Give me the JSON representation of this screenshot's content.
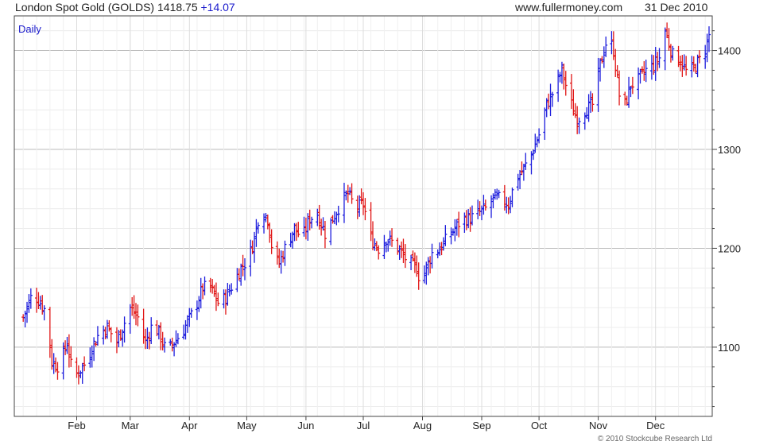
{
  "header": {
    "instrument": "London Spot Gold (GOLDS)",
    "price": "1418.75",
    "change": "+14.07",
    "site": "www.fullermoney.com",
    "date": "31 Dec 2010"
  },
  "frequency_label": "Daily",
  "copyright": "© 2010 Stockcube Research Ltd",
  "colors": {
    "up": "#1c1cdc",
    "down": "#e01515",
    "grid": "#cccccc",
    "frame": "#444444"
  },
  "chart_data": {
    "type": "candlestick",
    "title": "London Spot Gold (GOLDS)",
    "xlabel": "",
    "ylabel": "",
    "ylim": [
      1030,
      1435
    ],
    "y_ticks": [
      1100,
      1200,
      1300,
      1400
    ],
    "x_ticks": [
      "Feb",
      "Mar",
      "Apr",
      "May",
      "Jun",
      "Jul",
      "Aug",
      "Sep",
      "Oct",
      "Nov",
      "Dec"
    ],
    "x_tick_days": [
      31,
      59,
      90,
      120,
      151,
      181,
      212,
      243,
      273,
      304,
      334
    ],
    "x_range": [
      0,
      362
    ],
    "grid": true,
    "anchors": [
      [
        1,
        1120
      ],
      [
        5,
        1140
      ],
      [
        8,
        1155
      ],
      [
        12,
        1145
      ],
      [
        15,
        1135
      ],
      [
        18,
        1085
      ],
      [
        22,
        1080
      ],
      [
        26,
        1105
      ],
      [
        29,
        1070
      ],
      [
        32,
        1075
      ],
      [
        36,
        1085
      ],
      [
        39,
        1100
      ],
      [
        43,
        1115
      ],
      [
        47,
        1120
      ],
      [
        52,
        1105
      ],
      [
        56,
        1125
      ],
      [
        59,
        1140
      ],
      [
        63,
        1130
      ],
      [
        67,
        1105
      ],
      [
        71,
        1125
      ],
      [
        75,
        1110
      ],
      [
        78,
        1095
      ],
      [
        82,
        1105
      ],
      [
        86,
        1115
      ],
      [
        89,
        1125
      ],
      [
        93,
        1140
      ],
      [
        97,
        1160
      ],
      [
        101,
        1160
      ],
      [
        105,
        1145
      ],
      [
        109,
        1150
      ],
      [
        113,
        1165
      ],
      [
        117,
        1180
      ],
      [
        121,
        1190
      ],
      [
        124,
        1210
      ],
      [
        127,
        1240
      ],
      [
        131,
        1230
      ],
      [
        134,
        1190
      ],
      [
        137,
        1185
      ],
      [
        141,
        1205
      ],
      [
        145,
        1220
      ],
      [
        149,
        1210
      ],
      [
        153,
        1230
      ],
      [
        157,
        1235
      ],
      [
        161,
        1215
      ],
      [
        165,
        1230
      ],
      [
        169,
        1245
      ],
      [
        173,
        1255
      ],
      [
        177,
        1240
      ],
      [
        181,
        1245
      ],
      [
        185,
        1210
      ],
      [
        189,
        1200
      ],
      [
        193,
        1210
      ],
      [
        197,
        1205
      ],
      [
        201,
        1195
      ],
      [
        205,
        1185
      ],
      [
        209,
        1180
      ],
      [
        211,
        1165
      ],
      [
        213,
        1175
      ],
      [
        217,
        1195
      ],
      [
        221,
        1200
      ],
      [
        225,
        1210
      ],
      [
        229,
        1220
      ],
      [
        233,
        1230
      ],
      [
        237,
        1230
      ],
      [
        241,
        1235
      ],
      [
        245,
        1240
      ],
      [
        249,
        1250
      ],
      [
        253,
        1250
      ],
      [
        257,
        1245
      ],
      [
        261,
        1270
      ],
      [
        265,
        1280
      ],
      [
        269,
        1295
      ],
      [
        273,
        1315
      ],
      [
        277,
        1345
      ],
      [
        281,
        1360
      ],
      [
        285,
        1380
      ],
      [
        289,
        1350
      ],
      [
        293,
        1330
      ],
      [
        297,
        1340
      ],
      [
        301,
        1345
      ],
      [
        305,
        1385
      ],
      [
        309,
        1415
      ],
      [
        312,
        1400
      ],
      [
        315,
        1355
      ],
      [
        318,
        1345
      ],
      [
        321,
        1365
      ],
      [
        325,
        1370
      ],
      [
        329,
        1380
      ],
      [
        333,
        1385
      ],
      [
        337,
        1395
      ],
      [
        339,
        1420
      ],
      [
        343,
        1395
      ],
      [
        347,
        1390
      ],
      [
        351,
        1375
      ],
      [
        355,
        1385
      ],
      [
        359,
        1395
      ],
      [
        362,
        1415
      ]
    ],
    "last": {
      "close": 1418.75,
      "change": 14.07
    }
  }
}
